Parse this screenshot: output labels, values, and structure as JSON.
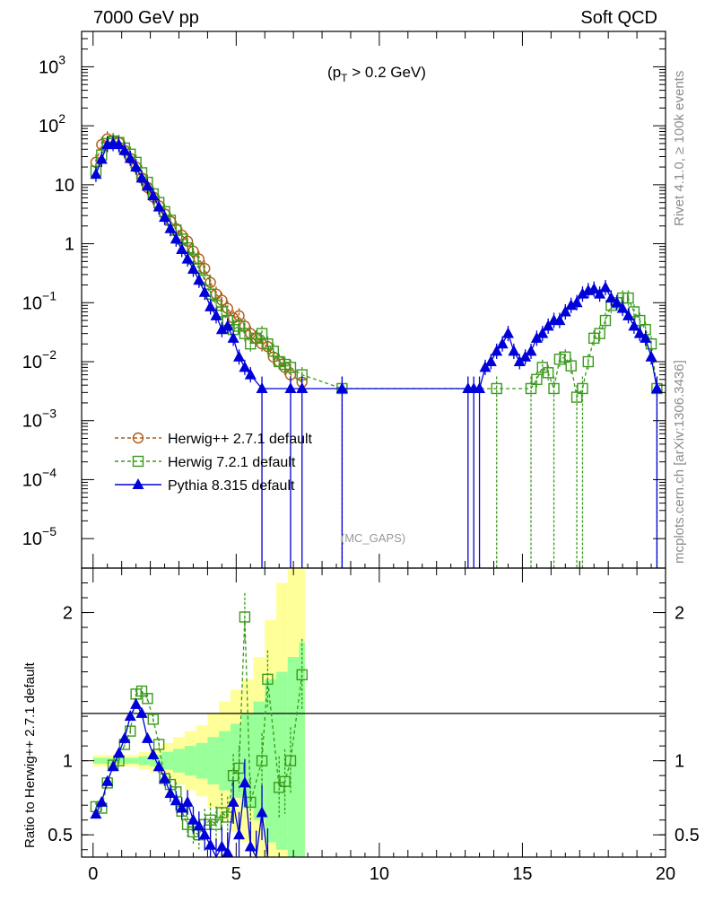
{
  "chart_data": {
    "type": "scatter",
    "header_left": "7000 GeV pp",
    "header_right": "Soft QCD",
    "annotation_main": "(p_T > 0.2 GeV)",
    "annotation_gaps": "(MC_GAPS)",
    "side_label_top": "Rivet 4.1.0, ≥ 100k events",
    "side_label_bottom": "mcplots.cern.ch [arXiv:1306.3436]",
    "ratio_ylabel": "Ratio to Herwig++ 2.7.1 default",
    "xlim": [
      -0.4,
      20.0
    ],
    "ylim_main_log10": [
      -5.5,
      3.6
    ],
    "ylim_ratio": [
      0.35,
      2.3
    ],
    "x_ticks": [
      0,
      5,
      10,
      15,
      20
    ],
    "x_tick_labels": [
      "0",
      "5",
      "10",
      "15",
      "20"
    ],
    "y_main_ticks": [
      {
        "exp": 3,
        "label": "10",
        "sup": "3"
      },
      {
        "exp": 2,
        "label": "10",
        "sup": "2"
      },
      {
        "exp": 1,
        "label": "10",
        "sup": ""
      },
      {
        "exp": 0,
        "label": "1",
        "sup": ""
      },
      {
        "exp": -1,
        "label": "10",
        "sup": "−1"
      },
      {
        "exp": -2,
        "label": "10",
        "sup": "−2"
      },
      {
        "exp": -3,
        "label": "10",
        "sup": "−3"
      },
      {
        "exp": -4,
        "label": "10",
        "sup": "−4"
      },
      {
        "exp": -5,
        "label": "10",
        "sup": "−5"
      }
    ],
    "y_ratio_ticks": [
      {
        "value": 2,
        "label": "2"
      },
      {
        "value": 1,
        "label": "1"
      },
      {
        "value": 0.5,
        "label": "0.5"
      }
    ],
    "legend": [
      {
        "name": "Herwig++ 2.7.1 default",
        "color": "#b25a14",
        "marker": "open-circle",
        "dash": true
      },
      {
        "name": "Herwig 7.2.1 default",
        "color": "#3a9a1c",
        "marker": "open-square",
        "dash": true
      },
      {
        "name": "Pythia 8.315 default",
        "color": "#0000d8",
        "marker": "filled-triangle",
        "dash": false
      }
    ],
    "series": [
      {
        "name": "Herwig++ 2.7.1 default",
        "color": "#b25a14",
        "marker": "open-circle",
        "x": [
          0.1,
          0.3,
          0.5,
          0.7,
          0.9,
          1.1,
          1.3,
          1.5,
          1.7,
          1.9,
          2.1,
          2.3,
          2.5,
          2.7,
          2.9,
          3.1,
          3.3,
          3.5,
          3.7,
          3.9,
          4.1,
          4.3,
          4.5,
          4.7,
          4.9,
          5.1,
          5.3,
          5.5,
          5.7,
          5.9,
          6.1,
          6.3,
          6.5,
          6.7,
          6.9,
          7.3
        ],
        "y": [
          24,
          48,
          60,
          56,
          52,
          38,
          28,
          20,
          13,
          9,
          6.2,
          4.4,
          3.2,
          2.4,
          1.8,
          1.4,
          1.1,
          0.75,
          0.55,
          0.38,
          0.22,
          0.14,
          0.11,
          0.08,
          0.055,
          0.06,
          0.04,
          0.03,
          0.025,
          0.02,
          0.018,
          0.012,
          0.01,
          0.008,
          0.006,
          0.0045
        ]
      },
      {
        "name": "Herwig 7.2.1 default",
        "color": "#3a9a1c",
        "marker": "open-square",
        "x": [
          0.1,
          0.3,
          0.5,
          0.7,
          0.9,
          1.1,
          1.3,
          1.5,
          1.7,
          1.9,
          2.1,
          2.3,
          2.5,
          2.7,
          2.9,
          3.1,
          3.3,
          3.5,
          3.7,
          3.9,
          4.1,
          4.3,
          4.5,
          4.7,
          4.9,
          5.1,
          5.3,
          5.5,
          5.7,
          5.9,
          6.1,
          6.3,
          6.5,
          6.7,
          6.9,
          7.3,
          8.7,
          14.1,
          15.3,
          15.5,
          15.7,
          15.9,
          16.1,
          16.3,
          16.5,
          16.7,
          16.9,
          17.1,
          17.3,
          17.5,
          17.7,
          17.9,
          18.1,
          18.3,
          18.5,
          18.7,
          18.9,
          19.1,
          19.3,
          19.5,
          19.7
        ],
        "y": [
          17,
          32,
          50,
          55,
          52,
          42,
          33,
          24,
          16,
          11,
          7,
          5,
          3.5,
          2.5,
          1.7,
          1.2,
          0.85,
          0.55,
          0.38,
          0.24,
          0.14,
          0.09,
          0.07,
          0.05,
          0.035,
          0.04,
          0.03,
          0.02,
          0.025,
          0.03,
          0.02,
          0.015,
          0.01,
          0.009,
          0.008,
          0.006,
          0.0035,
          0.0035,
          0.0035,
          0.005,
          0.008,
          0.0065,
          0.0035,
          0.011,
          0.012,
          0.0085,
          0.0025,
          0.0035,
          0.01,
          0.025,
          0.03,
          0.05,
          0.09,
          0.1,
          0.12,
          0.12,
          0.07,
          0.05,
          0.035,
          0.02,
          0.0035
        ]
      },
      {
        "name": "Pythia 8.315 default",
        "color": "#0000d8",
        "marker": "filled-triangle",
        "x": [
          0.1,
          0.3,
          0.5,
          0.7,
          0.9,
          1.1,
          1.3,
          1.5,
          1.7,
          1.9,
          2.1,
          2.3,
          2.5,
          2.7,
          2.9,
          3.1,
          3.3,
          3.5,
          3.7,
          3.9,
          4.1,
          4.3,
          4.5,
          4.7,
          4.9,
          5.1,
          5.3,
          5.5,
          5.9,
          6.9,
          7.3,
          8.7,
          13.1,
          13.3,
          13.5,
          13.7,
          13.9,
          14.1,
          14.3,
          14.5,
          14.7,
          14.9,
          15.1,
          15.3,
          15.5,
          15.7,
          15.9,
          16.1,
          16.3,
          16.5,
          16.7,
          16.9,
          17.1,
          17.3,
          17.5,
          17.7,
          17.9,
          18.1,
          18.3,
          18.5,
          18.7,
          18.9,
          19.1,
          19.3,
          19.5,
          19.7
        ],
        "y": [
          15,
          27,
          48,
          50,
          48,
          38,
          28,
          20,
          13,
          9.5,
          6.5,
          4.2,
          2.8,
          1.8,
          1.2,
          0.8,
          0.55,
          0.37,
          0.24,
          0.15,
          0.085,
          0.06,
          0.035,
          0.04,
          0.025,
          0.012,
          0.008,
          0.006,
          0.0035,
          0.0035,
          0.0035,
          0.0035,
          0.0035,
          0.0035,
          0.0035,
          0.008,
          0.01,
          0.015,
          0.02,
          0.03,
          0.015,
          0.01,
          0.012,
          0.015,
          0.025,
          0.03,
          0.04,
          0.05,
          0.05,
          0.07,
          0.09,
          0.1,
          0.14,
          0.16,
          0.17,
          0.14,
          0.18,
          0.12,
          0.1,
          0.08,
          0.06,
          0.04,
          0.03,
          0.025,
          0.012,
          0.0035
        ]
      }
    ],
    "ratio_series": [
      {
        "name": "Herwig 7.2.1 default",
        "color": "#3a9a1c",
        "marker": "open-square",
        "x": [
          0.1,
          0.3,
          0.5,
          0.7,
          0.9,
          1.1,
          1.3,
          1.5,
          1.7,
          1.9,
          2.1,
          2.3,
          2.5,
          2.7,
          2.9,
          3.1,
          3.3,
          3.5,
          3.7,
          3.9,
          4.1,
          4.3,
          4.5,
          4.7,
          4.9,
          5.1,
          5.3,
          5.5,
          5.9,
          6.1,
          6.5,
          6.7,
          6.9,
          7.3
        ],
        "y": [
          0.69,
          0.68,
          0.85,
          0.97,
          1.0,
          1.11,
          1.2,
          1.45,
          1.47,
          1.42,
          1.28,
          1.11,
          0.88,
          0.84,
          0.79,
          0.66,
          0.57,
          0.52,
          0.5,
          0.57,
          0.6,
          0.57,
          0.65,
          0.62,
          0.9,
          0.95,
          1.97,
          0.72,
          1.0,
          1.55,
          0.82,
          0.86,
          1.0,
          1.58
        ]
      },
      {
        "name": "Pythia 8.315 default",
        "color": "#0000d8",
        "marker": "filled-triangle",
        "x": [
          0.1,
          0.3,
          0.5,
          0.7,
          0.9,
          1.1,
          1.3,
          1.5,
          1.7,
          1.9,
          2.1,
          2.3,
          2.5,
          2.7,
          2.9,
          3.1,
          3.3,
          3.5,
          3.7,
          3.9,
          4.1,
          4.3,
          4.5,
          4.7,
          4.9,
          5.1,
          5.3,
          5.5,
          5.7,
          5.9,
          6.1
        ],
        "y": [
          0.64,
          0.72,
          0.86,
          0.96,
          1.05,
          1.15,
          1.3,
          1.38,
          1.32,
          1.15,
          1.04,
          0.96,
          0.88,
          0.78,
          0.73,
          0.68,
          0.72,
          0.6,
          0.56,
          0.5,
          0.43,
          0.35,
          0.42,
          0.38,
          0.72,
          0.5,
          0.85,
          0.42,
          0.35,
          0.65,
          0.35
        ]
      }
    ],
    "ratio_band_inner": {
      "x": [
        0,
        0.4,
        0.8,
        1.2,
        1.6,
        2.0,
        2.4,
        2.8,
        3.2,
        3.6,
        4.0,
        4.4,
        4.8,
        5.2,
        5.6,
        6.0,
        6.4,
        6.8,
        7.2,
        7.4
      ],
      "half_width": [
        0.02,
        0.02,
        0.02,
        0.02,
        0.03,
        0.04,
        0.06,
        0.08,
        0.1,
        0.12,
        0.16,
        0.2,
        0.25,
        0.32,
        0.4,
        0.55,
        0.6,
        0.7,
        0.8,
        0.9
      ]
    },
    "ratio_band_outer": {
      "x": [
        0,
        0.4,
        0.8,
        1.2,
        1.6,
        2.0,
        2.4,
        2.8,
        3.2,
        3.6,
        4.0,
        4.4,
        4.8,
        5.2,
        5.6,
        6.0,
        6.4,
        6.8,
        7.2,
        7.4
      ],
      "half_width": [
        0.04,
        0.04,
        0.04,
        0.04,
        0.06,
        0.08,
        0.12,
        0.16,
        0.2,
        0.24,
        0.32,
        0.4,
        0.48,
        0.55,
        0.7,
        0.95,
        1.2,
        1.4,
        1.5,
        1.6
      ]
    }
  }
}
